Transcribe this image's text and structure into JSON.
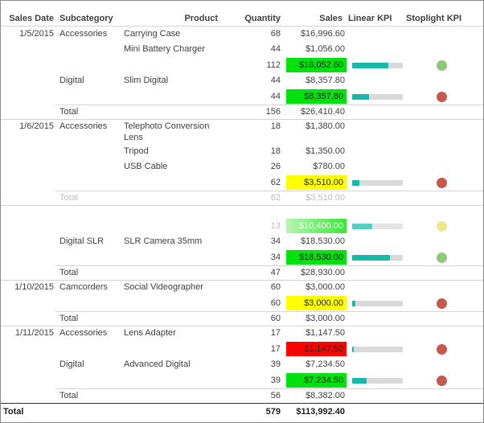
{
  "header": {
    "columns": [
      {
        "label": "Sales Date"
      },
      {
        "label": "Subcategory"
      },
      {
        "label": "Product"
      },
      {
        "label": "Quantity"
      },
      {
        "label": "Sales"
      },
      {
        "label": "Linear KPI"
      },
      {
        "label": "Stoplight KPI"
      }
    ]
  },
  "colors": {
    "kpi_green": "#00e10e",
    "kpi_green_faded_left": "#b9f4b4",
    "kpi_green_faded_right": "#38e738",
    "kpi_yellow": "#ffff00",
    "kpi_red": "#ff0000",
    "gauge_teal": "#18b8aa",
    "gauge_track": "#d9d9d9",
    "dot_green": "#8ec87b",
    "dot_red": "#c7584e",
    "dot_yellow": "#ece78c",
    "faded_text": "#bdbdbd",
    "body_text": "#3f3f3f"
  },
  "rows": [
    {
      "kind": "detail",
      "date": "1/5/2015",
      "subcategory": "Accessories",
      "product": "Carrying Case",
      "quantity": "68",
      "sales": "$16,996.60"
    },
    {
      "kind": "detail",
      "product": "Mini Battery Charger",
      "quantity": "44",
      "sales": "$1,056.00"
    },
    {
      "kind": "kpi",
      "quantity": "112",
      "sales": "$18,052.60",
      "bg": "green",
      "bar": 72,
      "dot": "green"
    },
    {
      "kind": "detail",
      "subcategory": "Digital",
      "product": "Slim Digital",
      "quantity": "44",
      "sales": "$8,357.80"
    },
    {
      "kind": "kpi",
      "quantity": "44",
      "sales": "$8,357.80",
      "bg": "green",
      "bar": 33,
      "dot": "red"
    },
    {
      "kind": "total",
      "label": "Total",
      "quantity": "156",
      "sales": "$26,410.40",
      "divider": "partial"
    },
    {
      "kind": "detail",
      "wrap": true,
      "date": "1/6/2015",
      "subcategory": "Accessories",
      "product": "Telephoto Conversion Lens",
      "quantity": "18",
      "sales": "$1,380.00",
      "divider": "full"
    },
    {
      "kind": "detail",
      "product": "Tripod",
      "quantity": "18",
      "sales": "$1,350.00"
    },
    {
      "kind": "detail",
      "product": "USB Cable",
      "quantity": "26",
      "sales": "$780.00"
    },
    {
      "kind": "kpi",
      "quantity": "62",
      "sales": "$3,510.00",
      "bg": "yellow",
      "bar": 15,
      "dot": "red"
    },
    {
      "kind": "total",
      "label": "Total",
      "quantity": "62",
      "sales": "$3,510.00",
      "divider": "partial",
      "faded": true
    },
    {
      "kind": "gap",
      "divider": "full"
    },
    {
      "kind": "kpi",
      "quantity": "13",
      "sales": "$10,400.00",
      "bg": "green-faded",
      "bar": 40,
      "dot": "yellow",
      "faded": true
    },
    {
      "kind": "detail",
      "subcategory": "Digital SLR",
      "product": "SLR Camera 35mm",
      "quantity": "34",
      "sales": "$18,530.00"
    },
    {
      "kind": "kpi",
      "quantity": "34",
      "sales": "$18,530.00",
      "bg": "green",
      "bar": 75,
      "dot": "green"
    },
    {
      "kind": "total",
      "label": "Total",
      "quantity": "47",
      "sales": "$28,930.00",
      "divider": "partial"
    },
    {
      "kind": "detail",
      "date": "1/10/2015",
      "subcategory": "Camcorders",
      "product": "Social Videographer",
      "quantity": "60",
      "sales": "$3,000.00",
      "divider": "full"
    },
    {
      "kind": "kpi",
      "quantity": "60",
      "sales": "$3,000.00",
      "bg": "yellow",
      "bar": 6,
      "dot": "red"
    },
    {
      "kind": "total",
      "label": "Total",
      "quantity": "60",
      "sales": "$3,000.00",
      "divider": "partial"
    },
    {
      "kind": "detail",
      "date": "1/11/2015",
      "subcategory": "Accessories",
      "product": "Lens Adapter",
      "quantity": "17",
      "sales": "$1,147.50",
      "divider": "full"
    },
    {
      "kind": "kpi",
      "quantity": "17",
      "sales": "$1,147.50",
      "bg": "red",
      "bar": 3,
      "dot": "red"
    },
    {
      "kind": "detail",
      "subcategory": "Digital",
      "product": "Advanced Digital",
      "quantity": "39",
      "sales": "$7,234.50"
    },
    {
      "kind": "kpi",
      "quantity": "39",
      "sales": "$7,234.50",
      "bg": "green",
      "bar": 28,
      "dot": "red"
    },
    {
      "kind": "total",
      "label": "Total",
      "quantity": "56",
      "sales": "$8,382.00",
      "divider": "partial"
    },
    {
      "kind": "grand-total",
      "label": "Total",
      "quantity": "579",
      "sales": "$113,992.40",
      "divider": "grand"
    }
  ]
}
